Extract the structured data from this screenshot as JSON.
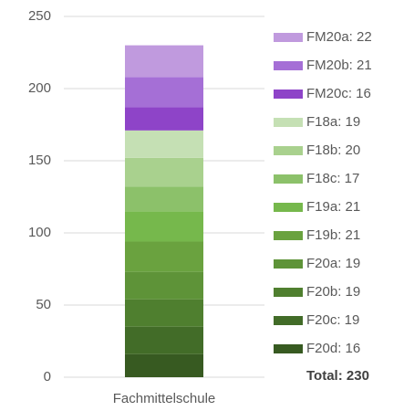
{
  "chart_data": {
    "type": "stacked_bar",
    "categories": [
      "Fachmittelschule"
    ],
    "series": [
      {
        "name": "F20d: 16",
        "color": "#375a21",
        "values": [
          16
        ]
      },
      {
        "name": "F20c: 19",
        "color": "#426c28",
        "values": [
          19
        ]
      },
      {
        "name": "F20b: 19",
        "color": "#4f7f2f",
        "values": [
          19
        ]
      },
      {
        "name": "F20a: 19",
        "color": "#5e9338",
        "values": [
          19
        ]
      },
      {
        "name": "F19b: 21",
        "color": "#6aa23f",
        "values": [
          21
        ]
      },
      {
        "name": "F19a: 21",
        "color": "#76b84c",
        "values": [
          21
        ]
      },
      {
        "name": "F18c: 17",
        "color": "#8cc16a",
        "values": [
          17
        ]
      },
      {
        "name": "F18b: 20",
        "color": "#a9d18e",
        "values": [
          20
        ]
      },
      {
        "name": "F18a: 19",
        "color": "#c5e0b4",
        "values": [
          19
        ]
      },
      {
        "name": "FM20c: 16",
        "color": "#8e44c8",
        "values": [
          16
        ]
      },
      {
        "name": "FM20b: 21",
        "color": "#a56fd6",
        "values": [
          21
        ]
      },
      {
        "name": "FM20a: 22",
        "color": "#c09ade",
        "values": [
          22
        ]
      }
    ],
    "total_label": "Total: 230",
    "ylim": [
      0,
      250
    ],
    "yticks": [
      0,
      50,
      100,
      150,
      200,
      250
    ],
    "grid": true,
    "legend": "right"
  }
}
